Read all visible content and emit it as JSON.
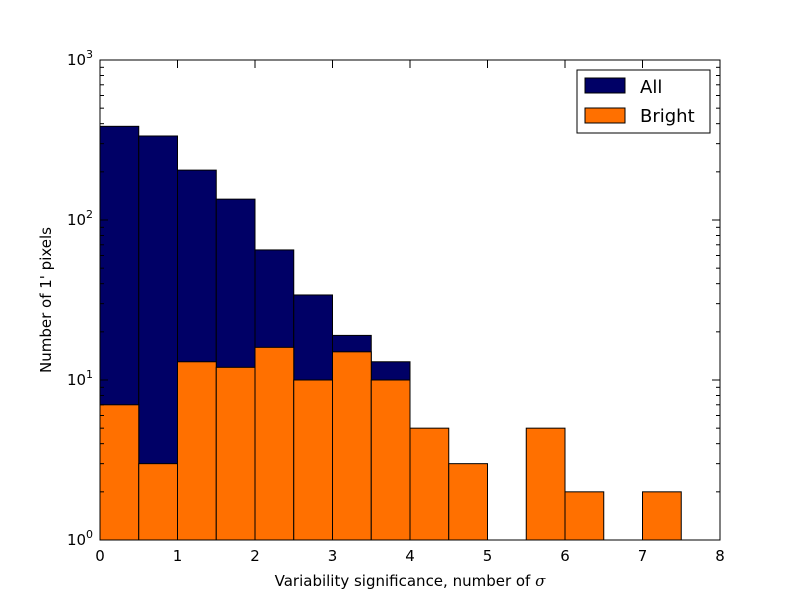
{
  "chart_data": {
    "type": "bar",
    "xlabel": "Variability significance, number of ",
    "xlabel_symbol": "σ",
    "ylabel": "Number of 1' pixels",
    "xlim": [
      0,
      8
    ],
    "ylim": [
      1,
      1000
    ],
    "yscale": "log",
    "x_ticks": [
      "0",
      "1",
      "2",
      "3",
      "4",
      "5",
      "6",
      "7",
      "8"
    ],
    "y_ticks": [
      {
        "base": "10",
        "exp": "0"
      },
      {
        "base": "10",
        "exp": "1"
      },
      {
        "base": "10",
        "exp": "2"
      },
      {
        "base": "10",
        "exp": "3"
      }
    ],
    "bin_width": 0.5,
    "bin_starts": [
      0,
      0.5,
      1,
      1.5,
      2,
      2.5,
      3,
      3.5,
      4,
      4.5,
      5,
      5.5,
      6,
      6.5,
      7
    ],
    "series": [
      {
        "name": "All",
        "color": "#000066",
        "values": [
          385,
          335,
          205,
          135,
          65,
          34,
          19,
          13,
          0,
          0,
          0,
          0,
          0,
          0,
          0
        ]
      },
      {
        "name": "Bright",
        "color": "#ff7000",
        "values": [
          7,
          3,
          13,
          12,
          16,
          10,
          15,
          10,
          5,
          3,
          1,
          5,
          2,
          0,
          2
        ]
      }
    ],
    "legend_position": "top-right",
    "legend": [
      {
        "label": "All",
        "color": "#000066"
      },
      {
        "label": "Bright",
        "color": "#ff7000"
      }
    ]
  }
}
